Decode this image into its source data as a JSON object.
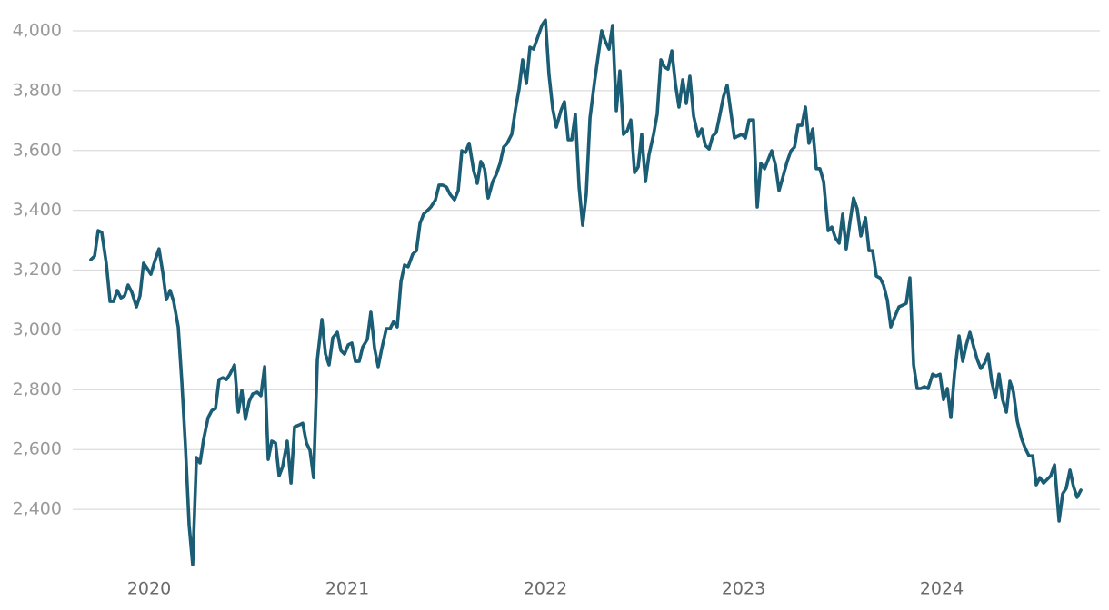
{
  "chart_data": {
    "type": "line",
    "color": "#1a5d74",
    "grid": true,
    "xlim": [
      2019.7,
      2024.72
    ],
    "xticks": [
      2020,
      2021,
      2022,
      2023,
      2024
    ],
    "ylim": [
      2200,
      4050
    ],
    "yticks": [
      {
        "value": 2400,
        "label": "2,400"
      },
      {
        "value": 2600,
        "label": "2,600"
      },
      {
        "value": 2800,
        "label": "2,800"
      },
      {
        "value": 3000,
        "label": "3,000"
      },
      {
        "value": 3200,
        "label": "3,200"
      },
      {
        "value": 3400,
        "label": "3,400"
      },
      {
        "value": 3600,
        "label": "3,600"
      },
      {
        "value": 3800,
        "label": "3,800"
      },
      {
        "value": 4000,
        "label": "4,000"
      }
    ],
    "x": [
      2019.706,
      2019.725,
      2019.743,
      2019.761,
      2019.784,
      2019.803,
      2019.821,
      2019.839,
      2019.858,
      2019.876,
      2019.894,
      2019.913,
      2019.936,
      2019.954,
      2019.972,
      2019.991,
      2020.009,
      2020.028,
      2020.05,
      2020.069,
      2020.087,
      2020.106,
      2020.124,
      2020.147,
      2020.165,
      2020.183,
      2020.202,
      2020.22,
      2020.239,
      2020.257,
      2020.275,
      2020.298,
      2020.317,
      2020.335,
      2020.353,
      2020.372,
      2020.39,
      2020.408,
      2020.431,
      2020.45,
      2020.468,
      2020.486,
      2020.505,
      2020.523,
      2020.546,
      2020.564,
      2020.583,
      2020.601,
      2020.619,
      2020.638,
      2020.656,
      2020.674,
      2020.697,
      2020.716,
      2020.734,
      2020.757,
      2020.775,
      2020.794,
      2020.812,
      2020.83,
      2020.849,
      2020.872,
      2020.89,
      2020.908,
      2020.927,
      2020.95,
      2020.968,
      2020.986,
      2021.005,
      2021.023,
      2021.041,
      2021.06,
      2021.078,
      2021.101,
      2021.119,
      2021.138,
      2021.156,
      2021.174,
      2021.197,
      2021.216,
      2021.234,
      2021.252,
      2021.271,
      2021.289,
      2021.307,
      2021.33,
      2021.349,
      2021.367,
      2021.385,
      2021.404,
      2021.422,
      2021.445,
      2021.463,
      2021.482,
      2021.5,
      2021.518,
      2021.541,
      2021.56,
      2021.578,
      2021.596,
      2021.615,
      2021.638,
      2021.656,
      2021.674,
      2021.693,
      2021.711,
      2021.734,
      2021.752,
      2021.771,
      2021.789,
      2021.807,
      2021.83,
      2021.849,
      2021.867,
      2021.885,
      2021.904,
      2021.922,
      2021.94,
      2021.963,
      2021.982,
      2022.0,
      2022.018,
      2022.037,
      2022.055,
      2022.078,
      2022.096,
      2022.115,
      2022.133,
      2022.151,
      2022.17,
      2022.188,
      2022.206,
      2022.225,
      2022.248,
      2022.266,
      2022.284,
      2022.303,
      2022.321,
      2022.339,
      2022.358,
      2022.376,
      2022.394,
      2022.413,
      2022.431,
      2022.45,
      2022.468,
      2022.486,
      2022.505,
      2022.523,
      2022.546,
      2022.564,
      2022.583,
      2022.601,
      2022.619,
      2022.638,
      2022.656,
      2022.674,
      2022.693,
      2022.711,
      2022.729,
      2022.748,
      2022.771,
      2022.789,
      2022.807,
      2022.826,
      2022.844,
      2022.862,
      2022.881,
      2022.899,
      2022.917,
      2022.936,
      2022.954,
      2022.972,
      2022.991,
      2023.009,
      2023.028,
      2023.05,
      2023.069,
      2023.087,
      2023.106,
      2023.124,
      2023.142,
      2023.161,
      2023.179,
      2023.197,
      2023.22,
      2023.239,
      2023.257,
      2023.275,
      2023.294,
      2023.312,
      2023.33,
      2023.349,
      2023.367,
      2023.385,
      2023.404,
      2023.427,
      2023.445,
      2023.463,
      2023.482,
      2023.5,
      2023.518,
      2023.537,
      2023.555,
      2023.573,
      2023.592,
      2023.615,
      2023.633,
      2023.651,
      2023.67,
      2023.688,
      2023.706,
      2023.725,
      2023.743,
      2023.761,
      2023.784,
      2023.803,
      2023.821,
      2023.839,
      2023.858,
      2023.876,
      2023.894,
      2023.913,
      2023.931,
      2023.954,
      2023.972,
      2023.991,
      2024.009,
      2024.028,
      2024.046,
      2024.064,
      2024.087,
      2024.106,
      2024.124,
      2024.142,
      2024.161,
      2024.179,
      2024.197,
      2024.216,
      2024.234,
      2024.252,
      2024.271,
      2024.289,
      2024.307,
      2024.326,
      2024.344,
      2024.362,
      2024.381,
      2024.404,
      2024.422,
      2024.44,
      2024.459,
      2024.477,
      2024.495,
      2024.514,
      2024.532,
      2024.55,
      2024.569,
      2024.592,
      2024.61,
      2024.628,
      2024.647,
      2024.665,
      2024.683,
      2024.702
    ],
    "values": [
      3235,
      3247,
      3332,
      3326,
      3223,
      3095,
      3095,
      3132,
      3107,
      3114,
      3150,
      3126,
      3077,
      3114,
      3223,
      3205,
      3186,
      3229,
      3271,
      3192,
      3101,
      3132,
      3095,
      3010,
      2828,
      2616,
      2348,
      2215,
      2573,
      2555,
      2634,
      2707,
      2731,
      2737,
      2834,
      2840,
      2834,
      2852,
      2883,
      2725,
      2798,
      2701,
      2761,
      2786,
      2792,
      2780,
      2877,
      2567,
      2628,
      2622,
      2512,
      2543,
      2628,
      2488,
      2676,
      2682,
      2688,
      2622,
      2597,
      2506,
      2901,
      3035,
      2919,
      2883,
      2974,
      2992,
      2931,
      2919,
      2950,
      2956,
      2895,
      2895,
      2943,
      2968,
      3059,
      2937,
      2877,
      2937,
      3004,
      3004,
      3028,
      3010,
      3162,
      3217,
      3211,
      3253,
      3265,
      3356,
      3387,
      3399,
      3411,
      3435,
      3484,
      3484,
      3478,
      3454,
      3435,
      3466,
      3599,
      3593,
      3624,
      3532,
      3490,
      3563,
      3539,
      3441,
      3496,
      3520,
      3557,
      3611,
      3624,
      3654,
      3739,
      3806,
      3903,
      3824,
      3945,
      3939,
      3982,
      4018,
      4036,
      3854,
      3739,
      3678,
      3733,
      3763,
      3636,
      3636,
      3721,
      3478,
      3350,
      3454,
      3709,
      3830,
      3915,
      4000,
      3964,
      3939,
      4018,
      3733,
      3866,
      3654,
      3666,
      3702,
      3526,
      3545,
      3654,
      3496,
      3587,
      3654,
      3721,
      3903,
      3879,
      3872,
      3933,
      3824,
      3745,
      3836,
      3757,
      3848,
      3715,
      3648,
      3672,
      3617,
      3605,
      3648,
      3660,
      3721,
      3781,
      3818,
      3727,
      3642,
      3648,
      3654,
      3642,
      3702,
      3702,
      3411,
      3557,
      3539,
      3569,
      3599,
      3551,
      3466,
      3508,
      3563,
      3599,
      3611,
      3684,
      3684,
      3745,
      3624,
      3672,
      3539,
      3539,
      3496,
      3332,
      3344,
      3308,
      3290,
      3387,
      3271,
      3362,
      3441,
      3405,
      3314,
      3375,
      3265,
      3265,
      3180,
      3174,
      3150,
      3101,
      3010,
      3041,
      3077,
      3083,
      3089,
      3174,
      2883,
      2804,
      2804,
      2810,
      2804,
      2852,
      2846,
      2852,
      2767,
      2804,
      2707,
      2852,
      2980,
      2895,
      2950,
      2992,
      2944,
      2901,
      2871,
      2889,
      2919,
      2828,
      2773,
      2852,
      2767,
      2725,
      2828,
      2792,
      2695,
      2634,
      2603,
      2579,
      2579,
      2482,
      2506,
      2488,
      2500,
      2512,
      2549,
      2361,
      2452,
      2470,
      2531,
      2476,
      2440,
      2464
    ]
  }
}
